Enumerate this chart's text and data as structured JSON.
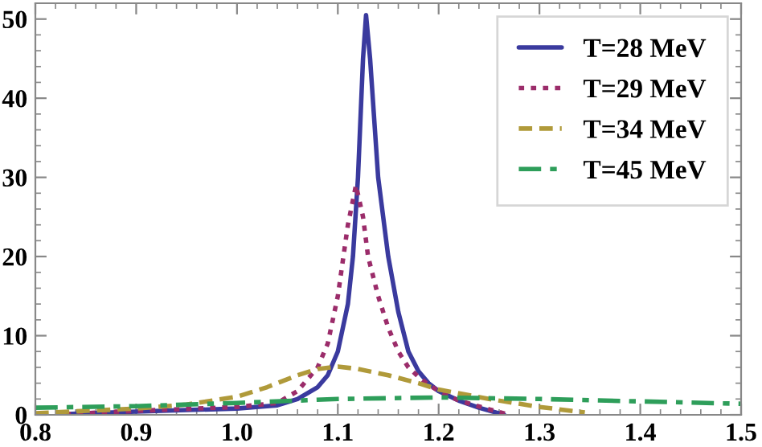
{
  "chart_data": {
    "type": "line",
    "xlim": [
      0.8,
      1.5
    ],
    "xticks": [
      0.8,
      0.9,
      {
        "value": 1.0,
        "label": "1.0"
      },
      1.1,
      1.2,
      1.3,
      1.4,
      1.5
    ],
    "ylim": [
      0,
      52
    ],
    "yticks": [
      0,
      10,
      20,
      30,
      40,
      50
    ],
    "grid": false,
    "legend": "top right",
    "series": [
      {
        "name": "T=28 MeV",
        "color": "#3a3a9e",
        "line_style": "solid",
        "x": [
          0.83,
          0.9,
          0.95,
          1.0,
          1.04,
          1.06,
          1.08,
          1.09,
          1.1,
          1.11,
          1.115,
          1.12,
          1.125,
          1.128,
          1.132,
          1.14,
          1.15,
          1.16,
          1.17,
          1.18,
          1.19,
          1.2,
          1.22,
          1.24,
          1.265
        ],
        "values": [
          0.1,
          0.4,
          0.6,
          0.8,
          1.2,
          2,
          3.5,
          5,
          8,
          14,
          20,
          30,
          45,
          50.5,
          45,
          30,
          20,
          13,
          8,
          5.5,
          4,
          3,
          1.8,
          0.9,
          0
        ]
      },
      {
        "name": "T=29 MeV",
        "color": "#9b2c6a",
        "line_style": "dotted",
        "x": [
          0.83,
          0.9,
          1.0,
          1.04,
          1.06,
          1.08,
          1.09,
          1.1,
          1.11,
          1.118,
          1.125,
          1.13,
          1.14,
          1.15,
          1.16,
          1.17,
          1.18,
          1.19,
          1.2,
          1.22,
          1.25,
          1.27
        ],
        "values": [
          0.1,
          0.5,
          1.0,
          1.5,
          3,
          6,
          9,
          15,
          24,
          29,
          25,
          20,
          15,
          11,
          8,
          6,
          4.8,
          3.8,
          3,
          1.8,
          0.7,
          0
        ]
      },
      {
        "name": "T=34 MeV",
        "color": "#b09a3a",
        "line_style": "dashed",
        "x": [
          0.8,
          0.9,
          0.95,
          1.0,
          1.03,
          1.06,
          1.08,
          1.1,
          1.12,
          1.15,
          1.18,
          1.2,
          1.25,
          1.3,
          1.345
        ],
        "values": [
          0.2,
          0.8,
          1.3,
          2.3,
          3.5,
          5,
          5.8,
          6.1,
          5.8,
          5,
          4,
          3.2,
          2,
          1.0,
          0.3
        ]
      },
      {
        "name": "T=45 MeV",
        "color": "#2e9e5a",
        "line_style": "dashdot",
        "x": [
          0.8,
          0.9,
          1.0,
          1.1,
          1.2,
          1.3,
          1.4,
          1.5
        ],
        "values": [
          0.9,
          1.1,
          1.5,
          2.0,
          2.2,
          2.0,
          1.7,
          1.4
        ]
      }
    ]
  }
}
